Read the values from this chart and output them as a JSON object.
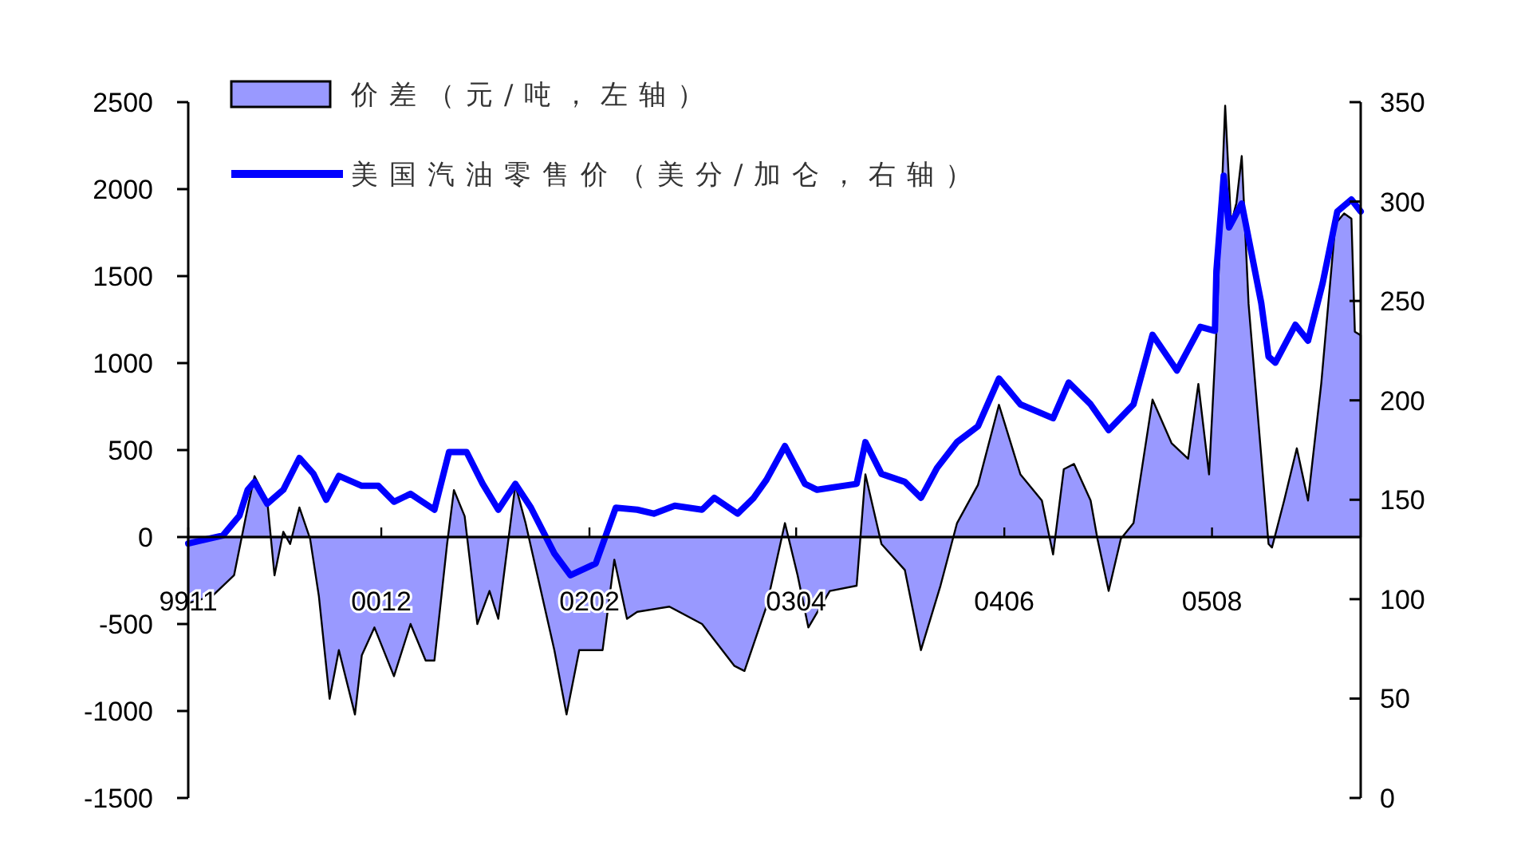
{
  "chart_data": {
    "type": "area",
    "legend": "top left",
    "xlim": [
      "1999-11-01",
      "2006-06-02"
    ],
    "ylim": [
      -1500,
      2500
    ],
    "y2lim": [
      0,
      350
    ],
    "xticks": [
      {
        "value": "1999-11-01",
        "label": "9911"
      },
      {
        "value": "2000-12-01",
        "label": "0012"
      },
      {
        "value": "2002-02-01",
        "label": "0202"
      },
      {
        "value": "2003-04-01",
        "label": "0304"
      },
      {
        "value": "2004-06-01",
        "label": "0406"
      },
      {
        "value": "2005-08-01",
        "label": "0508"
      }
    ],
    "yticks": [
      -1500,
      -1000,
      -500,
      0,
      500,
      1000,
      1500,
      2000,
      2500
    ],
    "y2ticks": [
      0,
      50,
      100,
      150,
      200,
      250,
      300,
      350
    ],
    "series": [
      {
        "name": "价差（元/吨，左轴）",
        "color": "#9999ff",
        "x": [
          "1999-11-01",
          "1999-12-20",
          "2000-02-03",
          "2000-03-02",
          "2000-03-16",
          "2000-04-11",
          "2000-04-26",
          "2000-05-14",
          "2000-05-28",
          "2000-06-16",
          "2000-07-08",
          "2000-07-26",
          "2000-08-17",
          "2000-09-05",
          "2000-10-08",
          "2000-10-22",
          "2000-11-17",
          "2000-12-27",
          "2001-01-30",
          "2001-03-02",
          "2001-03-20",
          "2001-04-15",
          "2001-04-29",
          "2001-05-21",
          "2001-06-16",
          "2001-07-11",
          "2001-07-29",
          "2001-09-02",
          "2001-09-23",
          "2001-11-21",
          "2001-12-16",
          "2002-01-11",
          "2002-02-28",
          "2002-03-24",
          "2002-04-19",
          "2002-05-10",
          "2002-07-15",
          "2002-09-20",
          "2002-11-25",
          "2002-12-16",
          "2003-01-30",
          "2003-03-09",
          "2003-04-04",
          "2003-04-26",
          "2003-06-09",
          "2003-08-03",
          "2003-08-21",
          "2003-09-23",
          "2003-11-10",
          "2003-12-13",
          "2004-01-22",
          "2004-02-25",
          "2004-04-08",
          "2004-05-21",
          "2004-07-04",
          "2004-08-17",
          "2004-09-09",
          "2004-10-01",
          "2004-10-22",
          "2004-11-25",
          "2004-12-09",
          "2005-01-01",
          "2005-01-26",
          "2005-02-21",
          "2005-04-01",
          "2005-05-10",
          "2005-06-13",
          "2005-07-04",
          "2005-07-26",
          "2005-08-10",
          "2005-08-28",
          "2005-09-09",
          "2005-09-20",
          "2005-10-01",
          "2005-10-15",
          "2005-11-25",
          "2005-12-02",
          "2005-12-27",
          "2006-01-22",
          "2006-02-14",
          "2006-03-13",
          "2006-04-11",
          "2006-04-29",
          "2006-05-14",
          "2006-05-21",
          "2006-06-02"
        ],
        "values": [
          -380,
          -340,
          -220,
          170,
          350,
          210,
          -220,
          30,
          -40,
          170,
          -10,
          -340,
          -930,
          -650,
          -1020,
          -680,
          -520,
          -800,
          -500,
          -710,
          -710,
          -40,
          270,
          120,
          -500,
          -310,
          -470,
          300,
          80,
          -650,
          -1020,
          -650,
          -650,
          -130,
          -470,
          -430,
          -400,
          -500,
          -740,
          -770,
          -400,
          80,
          -220,
          -520,
          -310,
          -280,
          360,
          -40,
          -190,
          -650,
          -280,
          80,
          300,
          760,
          360,
          210,
          -100,
          390,
          420,
          210,
          -10,
          -310,
          -10,
          80,
          790,
          540,
          450,
          880,
          360,
          1180,
          2480,
          1800,
          1920,
          2190,
          1340,
          -40,
          -60,
          210,
          510,
          210,
          880,
          1800,
          1860,
          1830,
          1180,
          1160
        ]
      },
      {
        "name": "美国汽油零售价（美分/加仑，右轴）",
        "type": "line",
        "axis": "y2",
        "color": "#0000ff",
        "x": [
          "1999-11-01",
          "2000-01-11",
          "2000-02-14",
          "2000-03-02",
          "2000-03-16",
          "2000-04-11",
          "2000-05-14",
          "2000-06-16",
          "2000-07-15",
          "2000-08-10",
          "2000-09-05",
          "2000-10-22",
          "2000-11-25",
          "2000-12-27",
          "2001-01-30",
          "2001-02-17",
          "2001-03-20",
          "2001-04-19",
          "2001-05-25",
          "2001-06-27",
          "2001-07-29",
          "2001-09-02",
          "2001-10-04",
          "2001-11-21",
          "2001-12-24",
          "2002-02-14",
          "2002-03-27",
          "2002-05-10",
          "2002-06-13",
          "2002-07-26",
          "2002-09-20",
          "2002-10-15",
          "2002-12-02",
          "2003-01-04",
          "2003-01-30",
          "2003-03-09",
          "2003-04-19",
          "2003-05-14",
          "2003-08-03",
          "2003-08-21",
          "2003-09-23",
          "2003-11-10",
          "2003-12-13",
          "2004-01-15",
          "2004-02-25",
          "2004-04-08",
          "2004-05-21",
          "2004-07-04",
          "2004-09-09",
          "2004-10-11",
          "2004-11-25",
          "2005-01-01",
          "2005-02-21",
          "2005-04-01",
          "2005-05-21",
          "2005-07-08",
          "2005-08-07",
          "2005-08-10",
          "2005-08-25",
          "2005-09-05",
          "2005-10-01",
          "2005-11-10",
          "2005-11-25",
          "2005-12-09",
          "2006-01-19",
          "2006-02-14",
          "2006-03-16",
          "2006-04-15",
          "2006-05-14",
          "2006-06-02"
        ],
        "values": [
          128,
          132,
          142,
          155,
          159,
          148,
          155,
          171,
          163,
          150,
          162,
          157,
          157,
          149,
          153,
          150,
          145,
          174,
          174,
          158,
          145,
          158,
          146,
          123,
          112,
          118,
          146,
          145,
          143,
          147,
          145,
          151,
          143,
          151,
          160,
          177,
          158,
          155,
          158,
          179,
          163,
          159,
          151,
          166,
          179,
          187,
          211,
          198,
          191,
          209,
          198,
          185,
          198,
          233,
          215,
          237,
          235,
          265,
          313,
          287,
          299,
          249,
          222,
          219,
          238,
          230,
          259,
          295,
          301,
          295
        ]
      }
    ]
  }
}
